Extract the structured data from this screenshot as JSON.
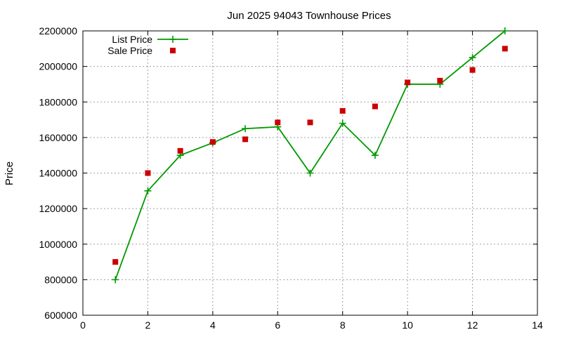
{
  "chart_data": {
    "type": "line",
    "title": "Jun 2025 94043 Townhouse Prices",
    "xlabel": "",
    "ylabel": "Price",
    "xlim": [
      0,
      14
    ],
    "ylim": [
      600000,
      2200000
    ],
    "xticks": [
      0,
      2,
      4,
      6,
      8,
      10,
      12,
      14
    ],
    "yticks": [
      600000,
      800000,
      1000000,
      1200000,
      1400000,
      1600000,
      1800000,
      2000000,
      2200000
    ],
    "grid": true,
    "legend_position": "top-left",
    "series": [
      {
        "name": "List Price",
        "style": "line+points",
        "marker": "plus",
        "color": "#009900",
        "x": [
          1,
          2,
          3,
          4,
          5,
          6,
          7,
          8,
          9,
          10,
          11,
          12,
          13
        ],
        "y": [
          800000,
          1300000,
          1500000,
          1570000,
          1650000,
          1660000,
          1400000,
          1680000,
          1500000,
          1900000,
          1900000,
          2050000,
          2200000
        ]
      },
      {
        "name": "Sale Price",
        "style": "points",
        "marker": "square",
        "color": "#cc0000",
        "x": [
          1,
          2,
          3,
          4,
          5,
          6,
          7,
          8,
          9,
          10,
          11,
          12,
          13
        ],
        "y": [
          900000,
          1400000,
          1525000,
          1575000,
          1590000,
          1685000,
          1685000,
          1750000,
          1775000,
          1910000,
          1920000,
          1980000,
          2100000
        ]
      }
    ]
  }
}
